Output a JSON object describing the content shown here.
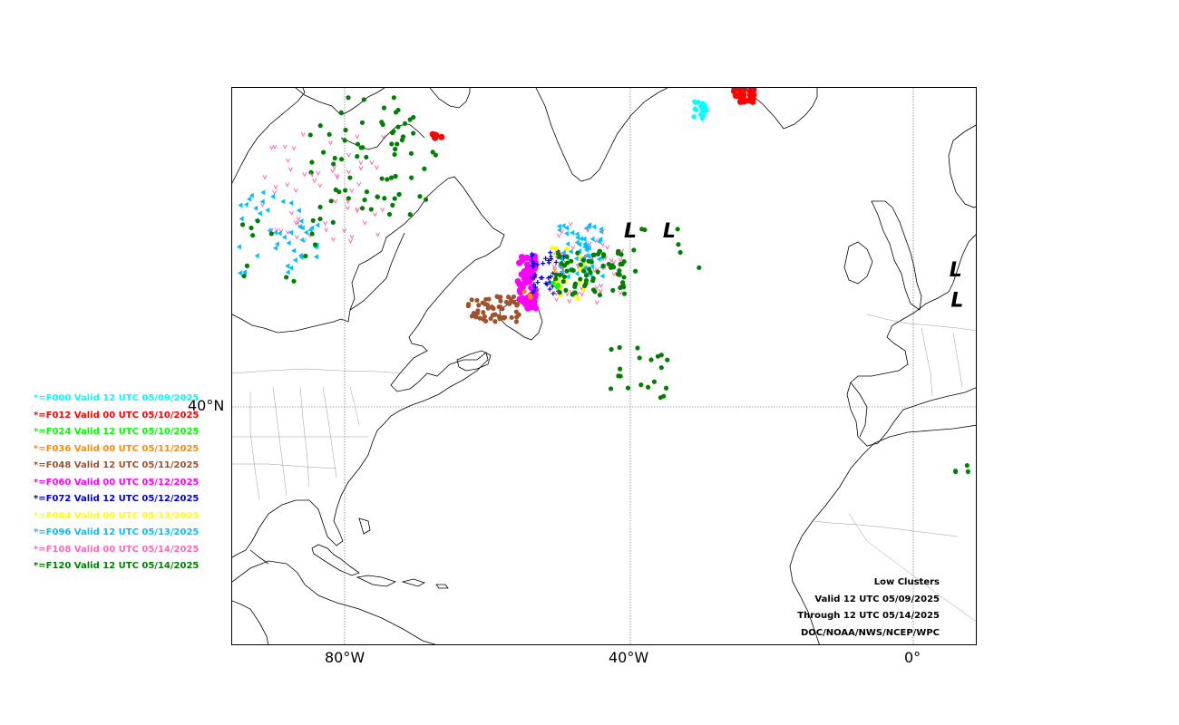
{
  "map": {
    "lon_labels": [
      "80°W",
      "40°W",
      "0°"
    ],
    "lat_labels": [
      "40°N"
    ],
    "low_marker": "L",
    "low_centers": [
      {
        "lon": -40,
        "lat": 59.5
      },
      {
        "lon": -34.5,
        "lat": 59.5
      },
      {
        "lon": 6,
        "lat": 55
      },
      {
        "lon": 6.2,
        "lat": 51.5
      }
    ]
  },
  "legend": [
    {
      "label": "*=F000 Valid 12 UTC 05/09/2025",
      "color": "#00ffff"
    },
    {
      "label": "*=F012 Valid 00 UTC 05/10/2025",
      "color": "#ff0000"
    },
    {
      "label": "*=F024 Valid 12 UTC 05/10/2025",
      "color": "#00ff00"
    },
    {
      "label": "*=F036 Valid 00 UTC 05/11/2025",
      "color": "#ff8c00"
    },
    {
      "label": "*=F048 Valid 12 UTC 05/11/2025",
      "color": "#a0522d"
    },
    {
      "label": "*=F060 Valid 00 UTC 05/12/2025",
      "color": "#ff00ff"
    },
    {
      "label": "*=F072 Valid 12 UTC 05/12/2025",
      "color": "#0000cd"
    },
    {
      "label": "*=F084 Valid 00 UTC 05/13/2025",
      "color": "#ffff00"
    },
    {
      "label": "*=F096 Valid 12 UTC 05/13/2025",
      "color": "#00bfff"
    },
    {
      "label": "*=F108 Valid 00 UTC 05/14/2025",
      "color": "#ff69b4"
    },
    {
      "label": "*=F120 Valid 12 UTC 05/14/2025",
      "color": "#008000"
    }
  ],
  "info": {
    "title": "Low Clusters",
    "valid": "Valid 12 UTC 05/09/2025",
    "through": "Through 12 UTC 05/14/2025",
    "source": "DOC/NOAA/NWS/NCEP/WPC"
  }
}
